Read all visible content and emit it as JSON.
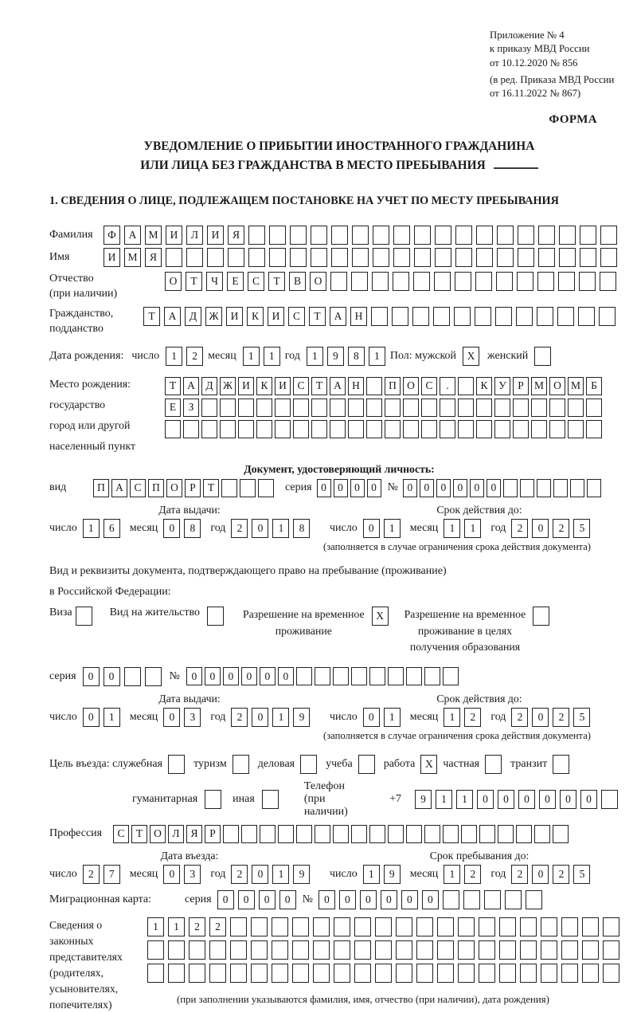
{
  "colors": {
    "ink": "#1a1a1a",
    "background": "#ffffff"
  },
  "header": {
    "appendix_lines": [
      "Приложение № 4",
      "к приказу МВД России",
      "от 10.12.2020 № 856"
    ],
    "edition_lines": [
      "(в ред. Приказа МВД России",
      "от 16.11.2022 № 867)"
    ],
    "forma": "ФОРМА"
  },
  "title": {
    "line1": "УВЕДОМЛЕНИЕ О ПРИБЫТИИ ИНОСТРАННОГО ГРАЖДАНИНА",
    "line2": "ИЛИ ЛИЦА БЕЗ ГРАЖДАНСТВА В МЕСТО ПРЕБЫВАНИЯ"
  },
  "section1": {
    "heading": "1. СВЕДЕНИЯ О ЛИЦЕ, ПОДЛЕЖАЩЕМ ПОСТАНОВКЕ НА УЧЕТ ПО МЕСТУ ПРЕБЫВАНИЯ"
  },
  "person": {
    "surname": {
      "label": "Фамилия",
      "boxes": {
        "text": "ФАМИЛИЯ",
        "len": 25
      }
    },
    "name": {
      "label": "Имя",
      "boxes": {
        "text": "ИМЯ",
        "len": 25
      }
    },
    "patronymic": {
      "label1": "Отчество",
      "label2": "(при наличии)",
      "boxes": {
        "text": "ОТЧЕСТВО",
        "len": 22
      }
    },
    "citizenship": {
      "label1": "Гражданство,",
      "label2": "подданство",
      "boxes": {
        "text": "ТАДЖИКИСТАН",
        "len": 23
      }
    },
    "birth_date": {
      "label": "Дата рождения:",
      "day_label": "число",
      "day": {
        "text": "12",
        "len": 2
      },
      "month_label": "месяц",
      "month": {
        "text": "11",
        "len": 2
      },
      "year_label": "год",
      "year": {
        "text": "1981",
        "len": 4
      },
      "sex_label": "Пол: мужской",
      "male": {
        "text": "X",
        "len": 1
      },
      "female_label": "женский",
      "female": {
        "text": "",
        "len": 1
      }
    },
    "birth_place": {
      "labels": [
        "Место рождения:",
        "государство",
        "город или другой",
        "населенный пункт"
      ],
      "rows": [
        {
          "text": "ТАДЖИКИСТАН ПОС. КУРМОМБ",
          "len": 24
        },
        {
          "text": "ЕЗ",
          "len": 24
        },
        {
          "text": "",
          "len": 24
        }
      ]
    }
  },
  "identity_doc": {
    "heading": "Документ, удостоверяющий личность:",
    "type_label": "вид",
    "type": {
      "text": "ПАСПОРТ",
      "len": 10
    },
    "series_label": "серия",
    "series": {
      "text": "0000",
      "len": 4
    },
    "number_label": "№",
    "number": {
      "text": "000000",
      "len": 12
    },
    "issue_heading": "Дата выдачи:",
    "valid_heading": "Срок действия до:",
    "issue": {
      "day_label": "число",
      "day": {
        "text": "16",
        "len": 2
      },
      "month_label": "месяц",
      "month": {
        "text": "08",
        "len": 2
      },
      "year_label": "год",
      "year": {
        "text": "2018",
        "len": 4
      }
    },
    "valid": {
      "day_label": "число",
      "day": {
        "text": "01",
        "len": 2
      },
      "month_label": "месяц",
      "month": {
        "text": "11",
        "len": 2
      },
      "year_label": "год",
      "year": {
        "text": "2025",
        "len": 4
      }
    },
    "note": "(заполняется в случае ограничения срока действия документа)"
  },
  "residence_doc": {
    "intro1": "Вид и реквизиты документа, подтверждающего право на пребывание (проживание)",
    "intro2": "в Российской Федерации:",
    "opt_visa": {
      "label": "Виза",
      "box": {
        "text": "",
        "len": 1
      }
    },
    "opt_residence_permit": {
      "label": "Вид на жительство",
      "box": {
        "text": "",
        "len": 1
      }
    },
    "opt_temp_permit": {
      "lines": [
        "Разрешение на временное",
        "проживание"
      ],
      "box": {
        "text": "X",
        "len": 1
      }
    },
    "opt_edu_permit": {
      "lines": [
        "Разрешение на временное",
        "проживание в целях",
        "получения образования"
      ],
      "box": {
        "text": "",
        "len": 1
      }
    },
    "series_label": "серия",
    "series": {
      "text": "00",
      "len": 4
    },
    "number_label": "№",
    "number": {
      "text": "000000",
      "len": 15
    },
    "issue_heading": "Дата выдачи:",
    "valid_heading": "Срок действия до:",
    "issue": {
      "day_label": "число",
      "day": {
        "text": "01",
        "len": 2
      },
      "month_label": "месяц",
      "month": {
        "text": "03",
        "len": 2
      },
      "year_label": "год",
      "year": {
        "text": "2019",
        "len": 4
      }
    },
    "valid": {
      "day_label": "число",
      "day": {
        "text": "01",
        "len": 2
      },
      "month_label": "месяц",
      "month": {
        "text": "12",
        "len": 2
      },
      "year_label": "год",
      "year": {
        "text": "2025",
        "len": 4
      }
    },
    "note": "(заполняется в случае ограничения срока действия документа)"
  },
  "entry": {
    "purpose_label": "Цель въезда: служебная",
    "purposes": [
      {
        "label": "туризм",
        "box": {
          "text": "",
          "len": 1
        }
      },
      {
        "label": "деловая",
        "box": {
          "text": "",
          "len": 1
        }
      },
      {
        "label": "учеба",
        "box": {
          "text": "",
          "len": 1
        }
      },
      {
        "label": "работа",
        "box": {
          "text": "X",
          "len": 1
        }
      },
      {
        "label": "частная",
        "box": {
          "text": "",
          "len": 1
        }
      },
      {
        "label": "транзит",
        "box": {
          "text": "",
          "len": 1
        }
      }
    ],
    "purpose_first_box": {
      "text": "",
      "len": 1
    },
    "humanitarian_label": "гуманитарная",
    "humanitarian_box": {
      "text": "",
      "len": 1
    },
    "other_label": "иная",
    "other_box": {
      "text": "",
      "len": 1
    },
    "phone_label": "Телефон (при наличии)",
    "phone_prefix": "+7",
    "phone": {
      "text": "911000000",
      "len": 10
    },
    "profession_label": "Профессия",
    "profession": {
      "text": "СТОЛЯР",
      "len": 25
    },
    "entry_heading": "Дата въезда:",
    "stay_heading": "Срок пребывания до:",
    "entry_date": {
      "day_label": "число",
      "day": {
        "text": "27",
        "len": 2
      },
      "month_label": "месяц",
      "month": {
        "text": "03",
        "len": 2
      },
      "year_label": "год",
      "year": {
        "text": "2019",
        "len": 4
      }
    },
    "stay_until": {
      "day_label": "число",
      "day": {
        "text": "19",
        "len": 2
      },
      "month_label": "месяц",
      "month": {
        "text": "12",
        "len": 2
      },
      "year_label": "год",
      "year": {
        "text": "2025",
        "len": 4
      }
    },
    "migration_card_label": "Миграционная карта:",
    "mc_series_label": "серия",
    "mc_series": {
      "text": "0000",
      "len": 4
    },
    "mc_number_label": "№",
    "mc_number": {
      "text": "000000",
      "len": 11
    }
  },
  "representatives": {
    "label_lines": [
      "Сведения о",
      "законных",
      "представителях",
      "(родителях,",
      "усыновителях,",
      "попечителях)"
    ],
    "rows": [
      {
        "text": "1122",
        "len": 23
      },
      {
        "text": "",
        "len": 23
      },
      {
        "text": "",
        "len": 23
      }
    ],
    "note": "(при заполнении указываются фамилия, имя, отчество (при наличии), дата рождения)"
  }
}
